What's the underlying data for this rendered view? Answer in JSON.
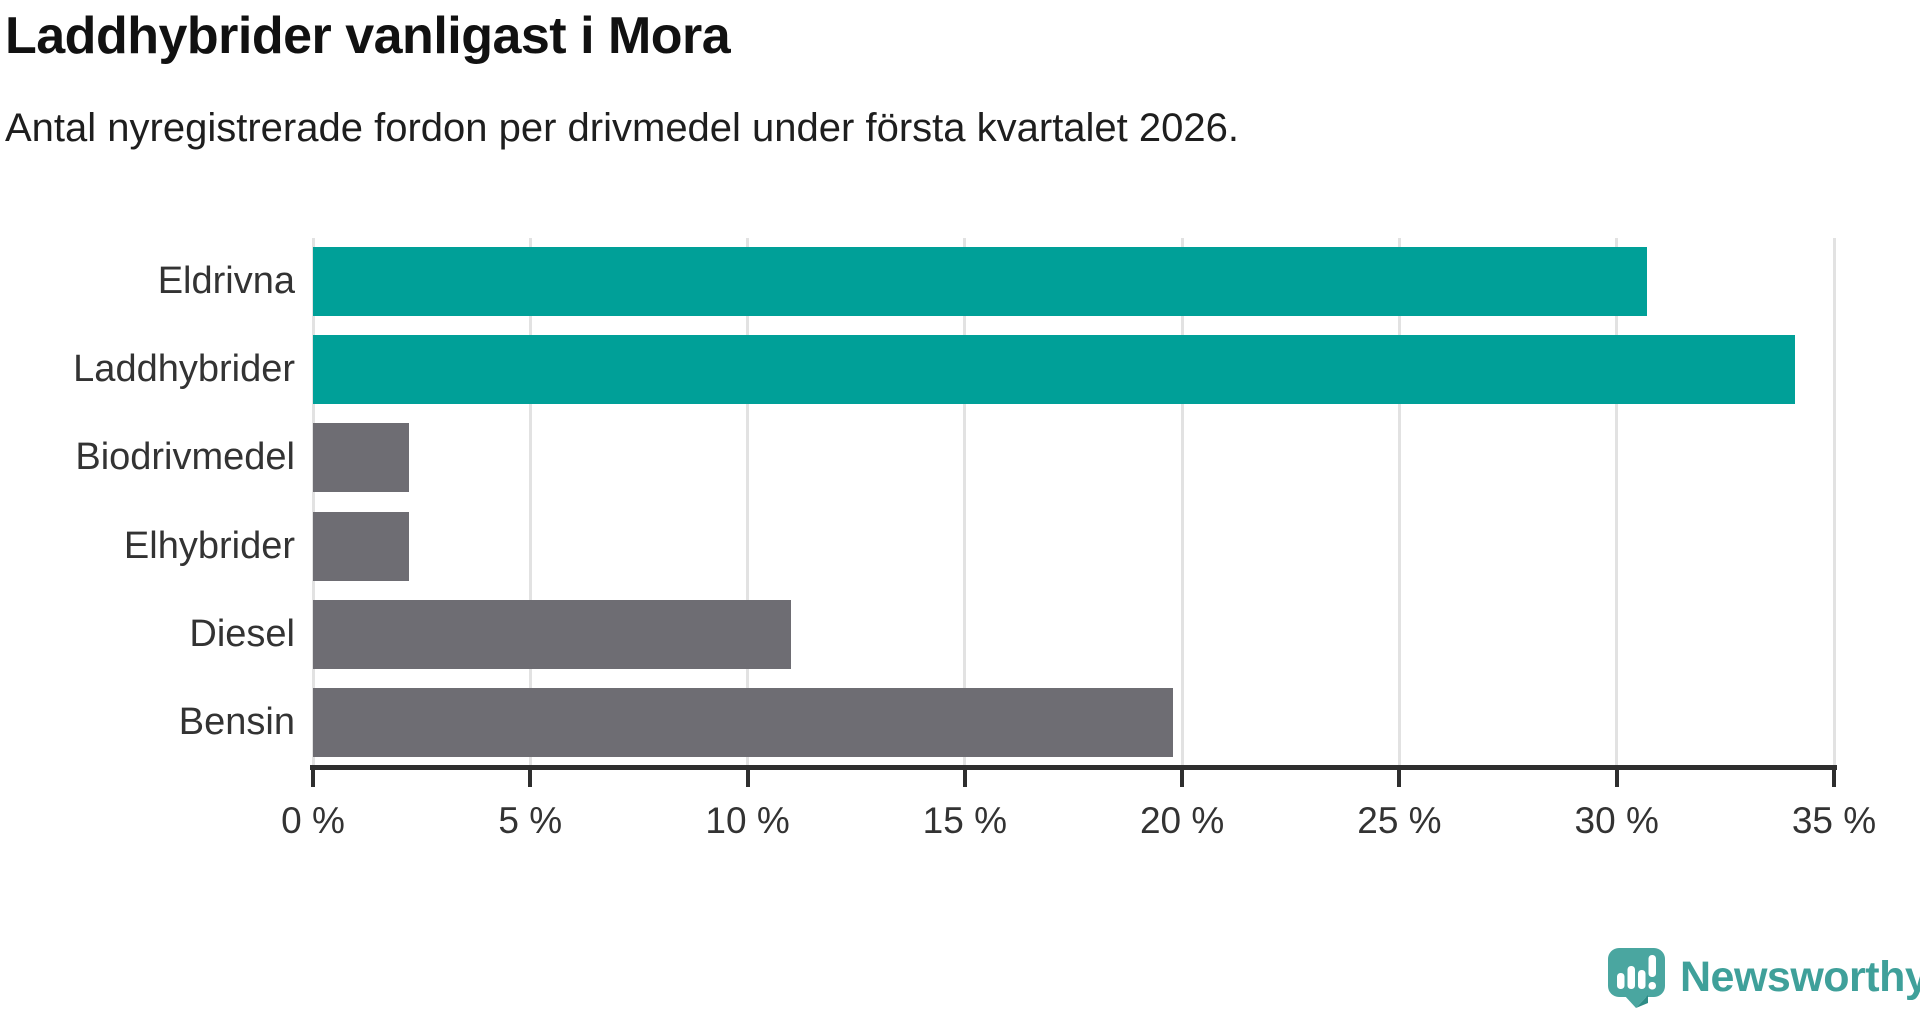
{
  "chart_data": {
    "type": "bar",
    "orientation": "horizontal",
    "title": "Laddhybrider vanligast i Mora",
    "subtitle": "Antal nyregistrerade fordon per drivmedel under första kvartalet 2026.",
    "categories": [
      "Eldrivna",
      "Laddhybrider",
      "Biodrivmedel",
      "Elhybrider",
      "Diesel",
      "Bensin"
    ],
    "values": [
      30.7,
      34.1,
      2.2,
      2.2,
      11.0,
      19.8
    ],
    "unit": "%",
    "xlabel": "",
    "ylabel": "",
    "xlim": [
      0,
      35
    ],
    "x_ticks": [
      0,
      5,
      10,
      15,
      20,
      25,
      30,
      35
    ],
    "x_tick_labels": [
      "0 %",
      "5 %",
      "10 %",
      "15 %",
      "20 %",
      "25 %",
      "30 %",
      "35 %"
    ],
    "bar_colors": [
      "#00A098",
      "#00A098",
      "#6E6D73",
      "#6E6D73",
      "#6E6D73",
      "#6E6D73"
    ],
    "highlight_color": "#00A098",
    "default_color": "#6E6D73",
    "grid": true,
    "gridline_color": "#e2e2e2",
    "axis_color": "#2e2e2e",
    "legend": "none"
  },
  "branding": {
    "logo_text": "Newsworthy",
    "logo_color": "#3FA09A",
    "logo_icon": "newsworthy-speech-bubble-chart-icon",
    "logo_icon_color": "#4AA6A0",
    "logo_icon_shade_color": "#2E8C86"
  }
}
